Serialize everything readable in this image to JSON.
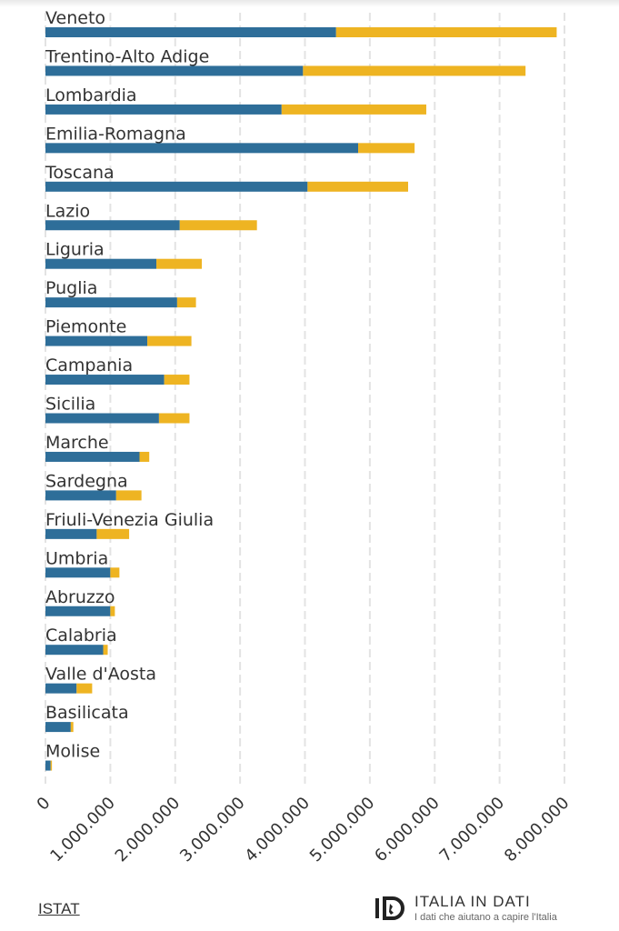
{
  "chart_data": {
    "type": "bar",
    "orientation": "horizontal",
    "stacked": true,
    "categories": [
      "Veneto",
      "Trentino-Alto Adige",
      "Lombardia",
      "Emilia-Romagna",
      "Toscana",
      "Lazio",
      "Liguria",
      "Puglia",
      "Piemonte",
      "Campania",
      "Sicilia",
      "Marche",
      "Sardegna",
      "Friuli-Venezia Giulia",
      "Umbria",
      "Abruzzo",
      "Calabria",
      "Valle d'Aosta",
      "Basilicata",
      "Molise"
    ],
    "series": [
      {
        "color": "#2e6e99",
        "values": [
          4480000,
          3970000,
          3640000,
          4820000,
          4040000,
          2070000,
          1710000,
          2030000,
          1570000,
          1830000,
          1750000,
          1450000,
          1090000,
          790000,
          1000000,
          1000000,
          890000,
          480000,
          390000,
          80000
        ]
      },
      {
        "color": "#eeb422",
        "values": [
          3400000,
          3430000,
          2230000,
          870000,
          1550000,
          1190000,
          700000,
          290000,
          680000,
          390000,
          470000,
          150000,
          390000,
          500000,
          140000,
          70000,
          70000,
          240000,
          40000,
          20000
        ]
      }
    ],
    "xlim": [
      0,
      8000000
    ],
    "xticks": [
      "0",
      "1.000.000",
      "2.000.000",
      "3.000.000",
      "4.000.000",
      "5.000.000",
      "6.000.000",
      "7.000.000",
      "8.000.000"
    ],
    "grid": true,
    "grid_style": "dashed vertical"
  },
  "footer": {
    "source_label": "ISTAT",
    "brand_name": "ITALIA IN DATI",
    "brand_tagline": "I dati che aiutano a capire l'Italia"
  }
}
